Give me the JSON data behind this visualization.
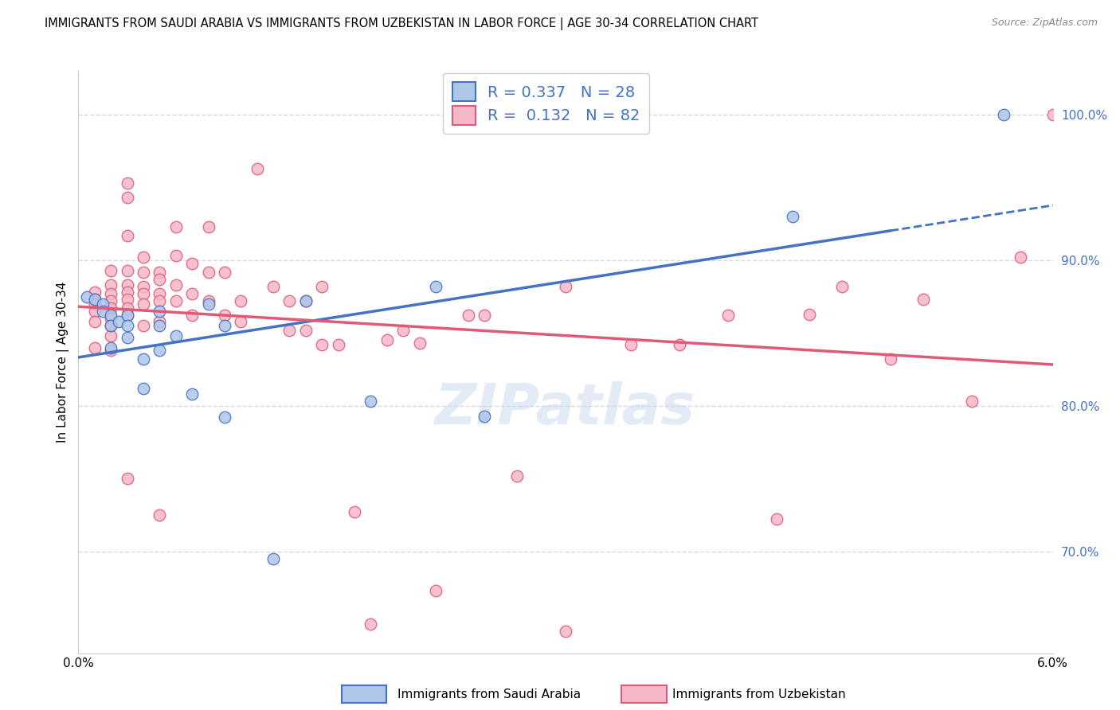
{
  "title": "IMMIGRANTS FROM SAUDI ARABIA VS IMMIGRANTS FROM UZBEKISTAN IN LABOR FORCE | AGE 30-34 CORRELATION CHART",
  "source": "Source: ZipAtlas.com",
  "ylabel": "In Labor Force | Age 30-34",
  "right_yticks": [
    0.7,
    0.8,
    0.9,
    1.0
  ],
  "right_yticklabels": [
    "70.0%",
    "80.0%",
    "90.0%",
    "100.0%"
  ],
  "xlim": [
    0.0,
    0.06
  ],
  "ylim": [
    0.63,
    1.03
  ],
  "saudi_R": 0.337,
  "saudi_N": 28,
  "uzbek_R": 0.132,
  "uzbek_N": 82,
  "saudi_color": "#aec6e8",
  "uzbek_color": "#f5b8c8",
  "saudi_trend_color": "#4472c4",
  "uzbek_trend_color": "#e05a78",
  "background_color": "#ffffff",
  "grid_color": "#d8d8d8",
  "saudi_x": [
    0.0005,
    0.001,
    0.0015,
    0.0015,
    0.002,
    0.002,
    0.002,
    0.0025,
    0.003,
    0.003,
    0.003,
    0.004,
    0.004,
    0.005,
    0.005,
    0.005,
    0.006,
    0.007,
    0.008,
    0.009,
    0.009,
    0.012,
    0.014,
    0.018,
    0.022,
    0.025,
    0.044,
    0.057
  ],
  "saudi_y": [
    0.875,
    0.873,
    0.87,
    0.865,
    0.862,
    0.855,
    0.84,
    0.858,
    0.862,
    0.855,
    0.847,
    0.832,
    0.812,
    0.865,
    0.855,
    0.838,
    0.848,
    0.808,
    0.87,
    0.855,
    0.792,
    0.695,
    0.872,
    0.803,
    0.882,
    0.793,
    0.93,
    1.0
  ],
  "uzbek_x": [
    0.001,
    0.001,
    0.001,
    0.001,
    0.001,
    0.001,
    0.002,
    0.002,
    0.002,
    0.002,
    0.002,
    0.002,
    0.002,
    0.002,
    0.002,
    0.003,
    0.003,
    0.003,
    0.003,
    0.003,
    0.003,
    0.003,
    0.003,
    0.003,
    0.004,
    0.004,
    0.004,
    0.004,
    0.004,
    0.004,
    0.005,
    0.005,
    0.005,
    0.005,
    0.005,
    0.006,
    0.006,
    0.006,
    0.006,
    0.007,
    0.007,
    0.007,
    0.008,
    0.008,
    0.008,
    0.009,
    0.009,
    0.01,
    0.01,
    0.011,
    0.012,
    0.013,
    0.013,
    0.014,
    0.014,
    0.015,
    0.015,
    0.016,
    0.017,
    0.019,
    0.02,
    0.021,
    0.022,
    0.024,
    0.025,
    0.027,
    0.03,
    0.034,
    0.037,
    0.04,
    0.043,
    0.045,
    0.047,
    0.05,
    0.052,
    0.055,
    0.058,
    0.06,
    0.003,
    0.005,
    0.018,
    0.03
  ],
  "uzbek_y": [
    0.878,
    0.873,
    0.87,
    0.865,
    0.858,
    0.84,
    0.893,
    0.883,
    0.877,
    0.872,
    0.867,
    0.86,
    0.855,
    0.848,
    0.838,
    0.953,
    0.943,
    0.917,
    0.893,
    0.883,
    0.878,
    0.873,
    0.867,
    0.862,
    0.902,
    0.892,
    0.882,
    0.877,
    0.87,
    0.855,
    0.892,
    0.887,
    0.877,
    0.872,
    0.858,
    0.923,
    0.903,
    0.883,
    0.872,
    0.898,
    0.877,
    0.862,
    0.923,
    0.892,
    0.872,
    0.892,
    0.862,
    0.872,
    0.858,
    0.963,
    0.882,
    0.872,
    0.852,
    0.872,
    0.852,
    0.882,
    0.842,
    0.842,
    0.727,
    0.845,
    0.852,
    0.843,
    0.673,
    0.862,
    0.862,
    0.752,
    0.882,
    0.842,
    0.842,
    0.862,
    0.722,
    0.863,
    0.882,
    0.832,
    0.873,
    0.803,
    0.902,
    1.0,
    0.75,
    0.725,
    0.65,
    0.645
  ],
  "title_fontsize": 10.5,
  "axis_label_fontsize": 11,
  "tick_fontsize": 11,
  "legend_fontsize": 14
}
